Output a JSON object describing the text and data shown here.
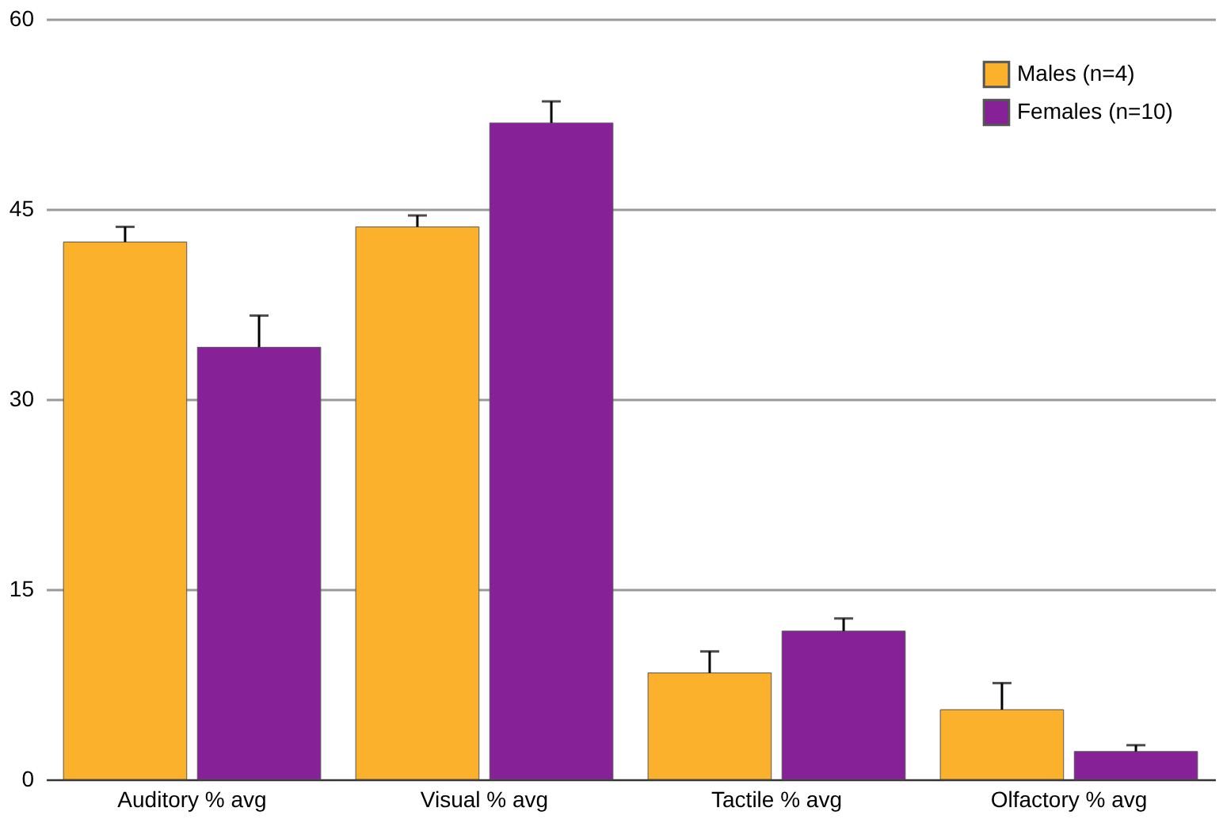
{
  "chart_data": {
    "type": "bar",
    "categories": [
      "Auditory % avg",
      "Visual % avg",
      "Tactile % avg",
      "Olfactory % avg"
    ],
    "series": [
      {
        "name": "Males (n=4)",
        "color": "#fbb12b",
        "values": [
          42.4,
          43.6,
          8.4,
          5.5
        ],
        "errors": [
          [
            42.4,
            43.6
          ],
          [
            43.6,
            44.5
          ],
          [
            8.4,
            10.1
          ],
          [
            5.5,
            7.6
          ]
        ]
      },
      {
        "name": "Females (n=10)",
        "color": "#862197",
        "values": [
          34.1,
          51.8,
          11.7,
          2.2
        ],
        "errors": [
          [
            34.1,
            36.6
          ],
          [
            51.8,
            53.5
          ],
          [
            11.7,
            12.7
          ],
          [
            2.2,
            2.7
          ]
        ]
      }
    ],
    "ylim": [
      0,
      60
    ],
    "yticks": [
      0,
      15,
      30,
      45,
      60
    ],
    "grid": "y",
    "legend": "top right"
  }
}
